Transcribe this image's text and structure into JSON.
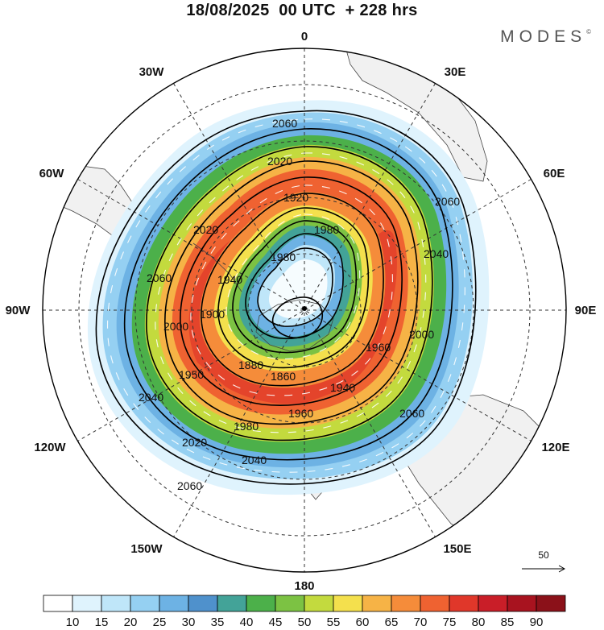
{
  "header": {
    "title": "18/08/2025  00 UTC  + 228 hrs",
    "brand": "MODES",
    "brand_mark": "©"
  },
  "map": {
    "projection": "South polar stereographic",
    "longitude_labels": [
      {
        "key": "n",
        "text": "0"
      },
      {
        "key": "30e",
        "text": "30E"
      },
      {
        "key": "60e",
        "text": "60E"
      },
      {
        "key": "90e",
        "text": "90E"
      },
      {
        "key": "120e",
        "text": "120E"
      },
      {
        "key": "150e",
        "text": "150E"
      },
      {
        "key": "s",
        "text": "180"
      },
      {
        "key": "150w",
        "text": "150W"
      },
      {
        "key": "120w",
        "text": "120W"
      },
      {
        "key": "90w",
        "text": "90W"
      },
      {
        "key": "60w",
        "text": "60W"
      },
      {
        "key": "30w",
        "text": "30W"
      }
    ],
    "contour_labels": [
      "2060",
      "2020",
      "1920",
      "1980",
      "2020",
      "1940",
      "2060",
      "2040",
      "2060",
      "2000",
      "1900",
      "1860",
      "1880",
      "1960",
      "1940",
      "2000",
      "1950",
      "1960",
      "1980",
      "2020",
      "2040",
      "2060",
      "2040",
      "2060",
      "1980"
    ],
    "wind_reference": {
      "value": "50",
      "unit": "arrow length"
    }
  },
  "colorbar": {
    "ticks": [
      "10",
      "15",
      "20",
      "25",
      "30",
      "35",
      "40",
      "45",
      "50",
      "55",
      "60",
      "65",
      "70",
      "75",
      "80",
      "85",
      "90"
    ],
    "colors": [
      "#ffffff",
      "#dff3fd",
      "#bfe6f9",
      "#95d0f2",
      "#6db2e4",
      "#4f91cc",
      "#43a398",
      "#4cb04a",
      "#7cc243",
      "#c3da3e",
      "#f4e04d",
      "#f6b346",
      "#f58c3a",
      "#ef6231",
      "#e0372a",
      "#c91e28",
      "#a8131f",
      "#8b1119"
    ]
  }
}
